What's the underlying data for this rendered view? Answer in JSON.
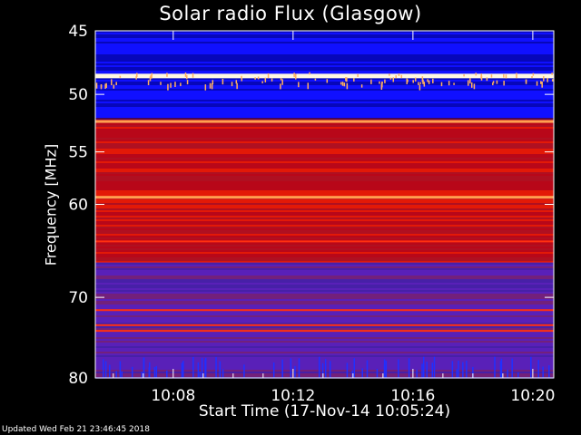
{
  "chart_data": {
    "type": "heatmap",
    "title": "Solar radio Flux (Glasgow)",
    "xlabel": "Start Time (17-Nov-14 10:05:24)",
    "ylabel": "Frequency [MHz]",
    "footer": "Updated Wed Feb 21 23:46:45 2018",
    "x_ticks": [
      "10:08",
      "10:12",
      "10:16",
      "10:20"
    ],
    "x_tick_minutes": [
      8,
      12,
      16,
      20
    ],
    "x_range_minutes": [
      5.4,
      20.7
    ],
    "y_ticks": [
      45,
      50,
      55,
      60,
      70,
      80
    ],
    "y_scale": "log",
    "y_range_mhz": [
      80,
      45
    ],
    "colorscale": [
      "#000080",
      "#1010ff",
      "#6020c0",
      "#b00020",
      "#ff2000",
      "#ffa050",
      "#fff8e0"
    ],
    "bright_bands_mhz": [
      {
        "freq": 48.5,
        "level": "very high"
      },
      {
        "freq": 52.3,
        "level": "high"
      },
      {
        "freq": 59.3,
        "level": "high"
      },
      {
        "freq": 63.8,
        "level": "medium"
      },
      {
        "freq": 71.5,
        "level": "medium"
      },
      {
        "freq": 73.3,
        "level": "medium"
      },
      {
        "freq": 74.0,
        "level": "medium"
      }
    ],
    "background_bands": [
      {
        "from": 45,
        "to": 52,
        "level": "low",
        "color": "#1010ff"
      },
      {
        "from": 52,
        "to": 66,
        "level": "medium",
        "color": "#c01010"
      },
      {
        "from": 66,
        "to": 80,
        "level": "low-medium",
        "color": "#5020b0"
      }
    ],
    "grid": false
  }
}
